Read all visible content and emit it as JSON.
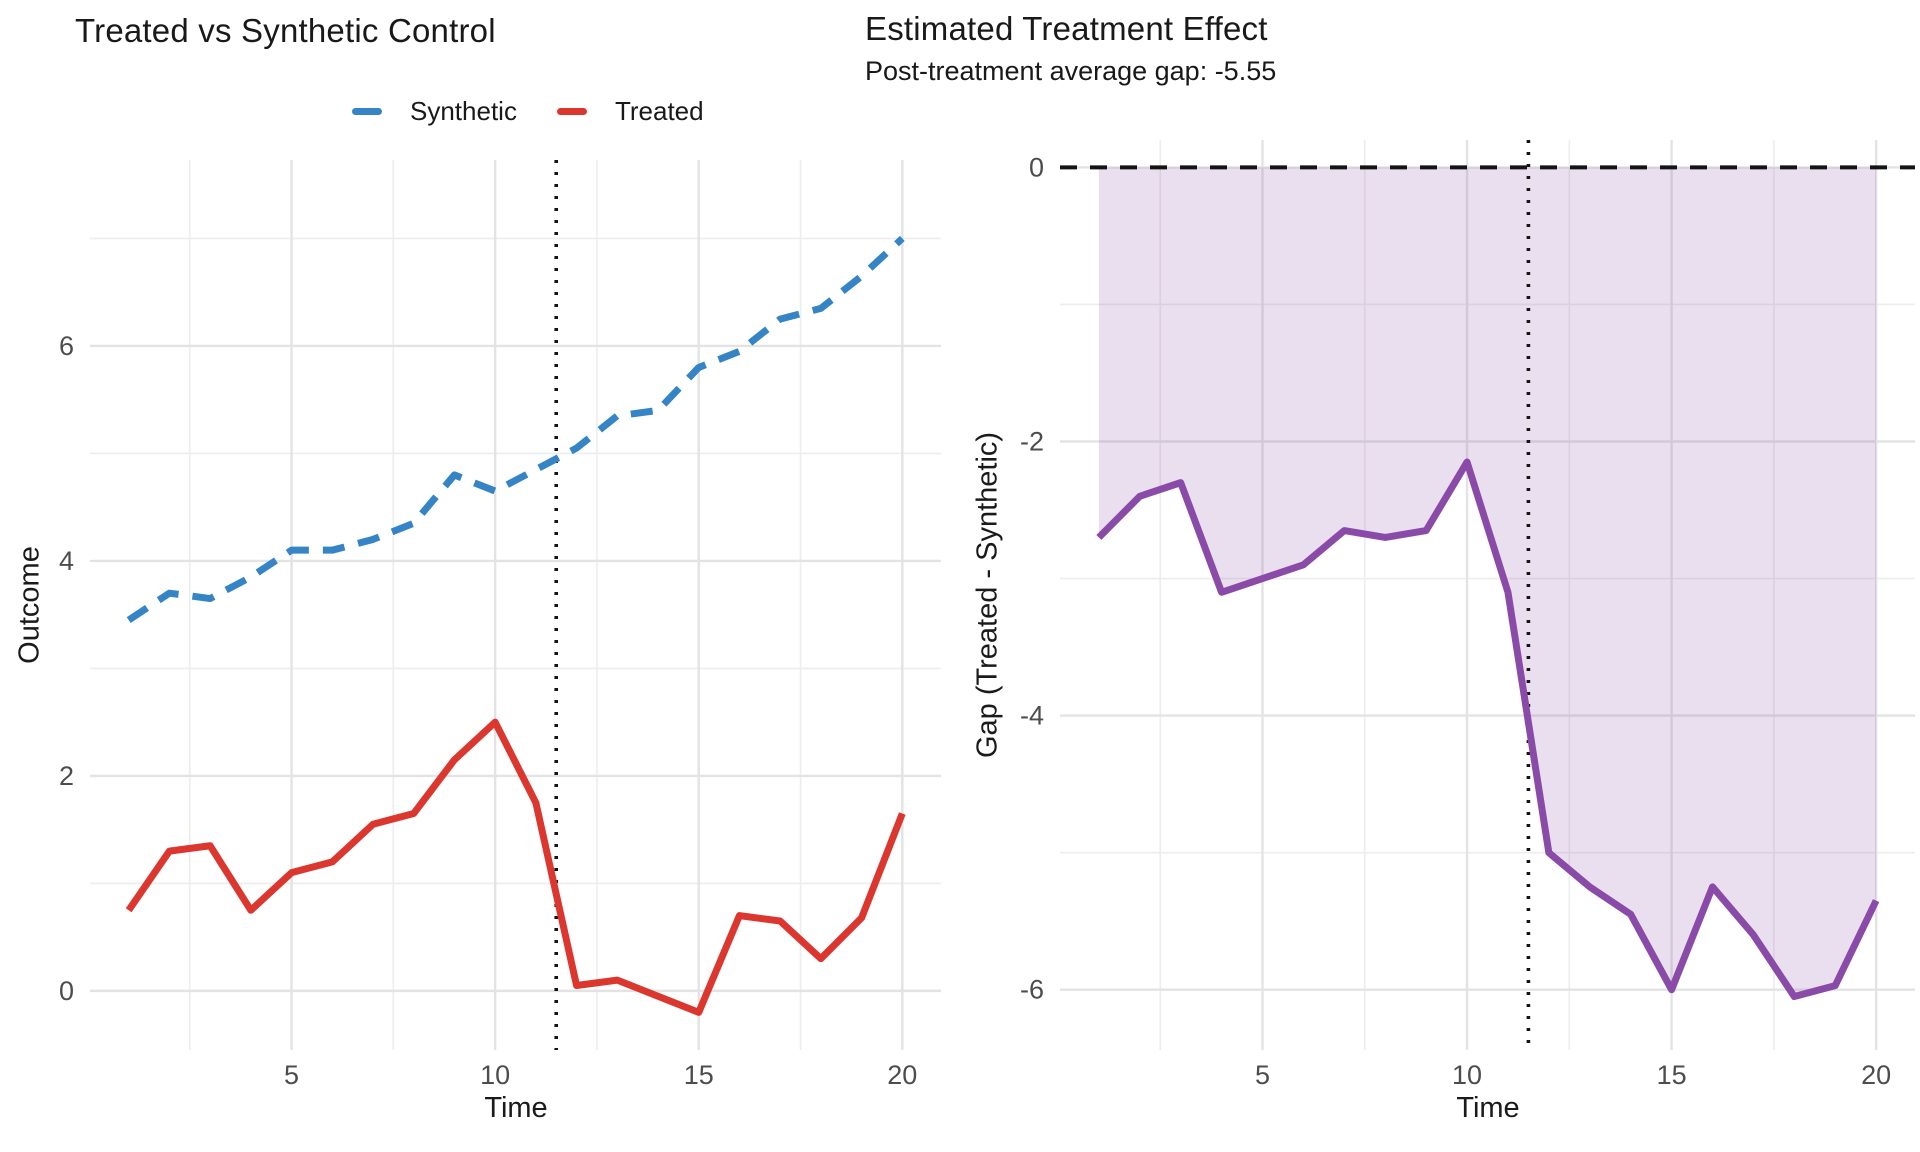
{
  "page": {
    "background": "#FFFFFF"
  },
  "chart_data": [
    {
      "type": "line",
      "title": "Treated vs Synthetic Control",
      "xlabel": "Time",
      "ylabel": "Outcome",
      "x": [
        1,
        2,
        3,
        4,
        5,
        6,
        7,
        8,
        9,
        10,
        11,
        12,
        13,
        14,
        15,
        16,
        17,
        18,
        19,
        20
      ],
      "series": [
        {
          "name": "Synthetic",
          "color": "#3584C6",
          "style": "dashed",
          "values": [
            3.45,
            3.7,
            3.65,
            3.85,
            4.1,
            4.1,
            4.2,
            4.35,
            4.8,
            4.65,
            4.85,
            5.05,
            5.35,
            5.4,
            5.8,
            5.95,
            6.25,
            6.35,
            6.65,
            7.0
          ]
        },
        {
          "name": "Treated",
          "color": "#DB372F",
          "style": "solid",
          "values": [
            0.75,
            1.3,
            1.35,
            0.75,
            1.1,
            1.2,
            1.55,
            1.65,
            2.15,
            2.5,
            1.75,
            0.05,
            0.1,
            -0.05,
            -0.2,
            0.7,
            0.65,
            0.3,
            0.68,
            1.65
          ]
        }
      ],
      "x_ticks": [
        5,
        10,
        15,
        20
      ],
      "y_ticks": [
        0,
        2,
        4,
        6
      ],
      "x_minor": [
        2.5,
        7.5,
        12.5,
        17.5
      ],
      "y_minor": [
        1,
        3,
        5,
        7
      ],
      "xlim": [
        0.05,
        20.95
      ],
      "ylim": [
        -0.55,
        7.73
      ],
      "treatment_vline": 11.5,
      "legend_position": "top",
      "grid": "on"
    },
    {
      "type": "line+area",
      "title": "Estimated Treatment Effect",
      "subtitle": "Post-treatment average gap: -5.55",
      "xlabel": "Time",
      "ylabel": "Gap (Treated - Synthetic)",
      "x": [
        1,
        2,
        3,
        4,
        5,
        6,
        7,
        8,
        9,
        10,
        11,
        12,
        13,
        14,
        15,
        16,
        17,
        18,
        19,
        20
      ],
      "series": [
        {
          "name": "Gap",
          "color": "#8A4BA8",
          "style": "solid",
          "values": [
            -2.7,
            -2.4,
            -2.3,
            -3.1,
            -3.0,
            -2.9,
            -2.65,
            -2.7,
            -2.65,
            -2.15,
            -3.1,
            -5.0,
            -5.25,
            -5.45,
            -6.0,
            -5.25,
            -5.6,
            -6.05,
            -5.97,
            -5.35
          ]
        }
      ],
      "area": {
        "baseline": 0,
        "fill": "rgba(138,75,168,0.18)"
      },
      "zero_line": {
        "y": 0,
        "style": "dashed",
        "color": "#141414"
      },
      "x_ticks": [
        5,
        10,
        15,
        20
      ],
      "y_ticks": [
        0,
        -2,
        -4,
        -6
      ],
      "x_minor": [
        2.5,
        7.5,
        12.5,
        17.5
      ],
      "y_minor": [
        -1,
        -3,
        -5
      ],
      "xlim": [
        0.05,
        20.95
      ],
      "ylim": [
        -6.44,
        0.2
      ],
      "treatment_vline": 11.5,
      "grid": "on"
    }
  ],
  "colors": {
    "grid_major": "#E3E3E3",
    "grid_minor": "#EDEDED",
    "tick_label": "#4D4D4D",
    "text": "#191919"
  }
}
